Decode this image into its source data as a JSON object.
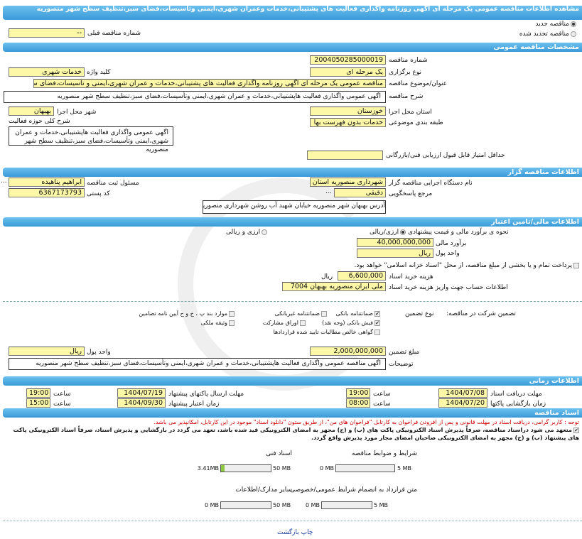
{
  "title": "مشاهده اطلاعات مناقصه عمومی یک مرحله ای اگهی روزنامه واگذاری فعالیت های پشتیبانی،خدمات وعمران شهری،ایمنی وتاسیسات،فضای سبز،تنظیف سطح شهر منصوریه",
  "tender_type": {
    "new": "مناقصه جدید",
    "renewed": "مناقصه تجدید شده",
    "prev_label": "شماره مناقصه قبلی",
    "prev_value": "--"
  },
  "general": {
    "header": "مشخصات مناقصه عمومی",
    "number_label": "شماره مناقصه",
    "number": "2004050285000019",
    "holding_label": "نوع برگزاری",
    "holding": "یک مرحله ای",
    "keyword_label": "کلید واژه",
    "keyword": "خدمات شهری",
    "subject_label": "عنوان/موضوع مناقصه",
    "subject": "مناقصه عمومی یک مرحله ای اگهی روزنامه واگذاری فعالیت های پشتیبانی،خدمات و عمران شهری،ایمنی و تأسیسات،فضای سبز",
    "desc_label": "شرح مناقصه",
    "desc": "اگهی عمومی  واگذاری فعالیت هاپشتیبانی،خدمات و عمران شهری،ایمنی وتأسیسات،فضای سبز،تنظیف  سطح شهر منصوریه",
    "province_label": "استان محل اجرا",
    "province": "خوزستان",
    "city_label": "شهر محل اجرا",
    "city": "بهبهان",
    "category_label": "طبقه بندی موضوعی",
    "category": "خدمات بدون فهرست بها",
    "activity_label": "شرح کلی حوزه فعالیت",
    "activity": "اگهی عمومی واگذاری فعالیت هاپشتیبانی،خدمات و عمران شهری،ایمنی وتأسیسات،فضای سبز،تنظیف  سطح شهر منصوریه",
    "min_score_label": "حداقل امتیاز قابل قبول ارزیابی فنی/بازرگانی",
    "min_score": ""
  },
  "organizer": {
    "header": "اطلاعات مناقصه گزار",
    "org_label": "نام دستگاه اجرایی مناقصه گزار",
    "org": "شهرداری منصوریه استان خ",
    "resp_label": "مسئول ثبت مناقصه",
    "resp": "ابراهیم پناهیده",
    "ref_label": "مرجع پاسخگویی",
    "ref": "دقیقی",
    "postal_label": "کد پستی",
    "postal": "6367173793",
    "address_label": "آدرس",
    "address": "بهبهان شهر منصوریه خیابان شهید آب روشن شهرداری منصوریه",
    "more": "..."
  },
  "finance": {
    "header": "اطلاعات مالی/تامین اعتبار",
    "method_label": "نحوه ی برآورد مالی و قیمت پیشنهادی",
    "opt_rial": "ارزی/ریالی",
    "opt_both": "ارزی و ریالی",
    "estimate_label": "برآورد مالی",
    "estimate": "40,000,000,000",
    "currency_label": "واحد پول",
    "currency": "ریال",
    "treasury": "پرداخت تمام و یا بخشی  از مبلغ مناقصه، از محل \"اسناد خزانه اسلامی\" خواهد بود.",
    "doc_fee_label": "هزینه خرید اسناد",
    "doc_fee": "6,600,000",
    "doc_fee_unit": "ریال",
    "account_label": "اطلاعات حساب جهت واریز هزینه خرید اسناد",
    "account": "ملی ایران منصوریه بهبهان 7004",
    "guarantee_label": "تضمین شرکت در مناقصه:",
    "guarantee_type_label": "نوع تضمین",
    "options": [
      {
        "label": "ضمانتنامه بانکی",
        "checked": true
      },
      {
        "label": "ضمانتنامه غیربانکی",
        "checked": false
      },
      {
        "label": "موارد بند پ ، خ و ح آیین نامه تضامین",
        "checked": false
      },
      {
        "label": "فیش بانکی (وجه نقد)",
        "checked": true
      },
      {
        "label": "اوراق مشارکت",
        "checked": false
      },
      {
        "label": "وثیقه ملکی",
        "checked": false
      },
      {
        "label": "گواهی خالص مطالبات تایید شده قراردادها",
        "checked": false
      }
    ],
    "g_amount_label": "مبلغ تضمین",
    "g_amount": "2,000,000,000",
    "g_currency_label": "واحد پول",
    "g_currency": "ریال",
    "notes_label": "توضیحات",
    "notes": "اگهی مناقصه عمومی واگذاری فعالیت هاپشتیبانی،خدمات و عمران شهری،ایمنی وتأسیسات،فضای سبز،تنظیف  سطح شهر منصوریه"
  },
  "timing": {
    "header": "اطلاعات زمانی",
    "doc_deadline_label": "مهلت دریافت اسناد",
    "doc_deadline": "1404/07/08",
    "t1_label": "ساعت",
    "t1": "19:00",
    "submit_label": "مهلت ارسال پاکتهای پیشنهاد",
    "submit": "1404/07/19",
    "t2_label": "ساعت",
    "t2": "19:00",
    "open_label": "زمان بازگشایی پاکتها",
    "open": "1404/07/20",
    "t3_label": "ساعت",
    "t3": "08:00",
    "valid_label": "زمان اعتبار پیشنهاد",
    "valid": "1404/09/30",
    "t4_label": "ساعت",
    "t4": "15:00"
  },
  "docs": {
    "header": "اسناد مناقصه",
    "note": "توجه : کاربر گرامی، دریافت اسناد در مهلت قانونی و پس از افزودن فراخوان به کارتابل \"فراخوان های من\"، از طریق ستون \"دانلود اسناد\" موجود در این کارتابل، امکانپذیر می باشد.",
    "commit": "متعهد می شود دراسناد مناقصه، صرفاً پذیرش اسناد الکترونیکی پاکت های (ب) و (ج) مجهز به امضای الکترونیکی قید شده باشد، تعهد می گردد در بازگشایی و پذیرش اسناد، صرفاً اسناد الکترونیکی پاکت های پیشنهاد (ب) و (ج) مجهز به امضای الکترونیکی صاحبان امضای مجاز مورد پذیرش واقع گردد.",
    "files": [
      {
        "label": "شرایط و ضوابط مناقصه",
        "used": "0 MB",
        "max": "5 MB",
        "fill": 0
      },
      {
        "label": "اسناد فنی",
        "used": "3.41MB",
        "max": "50 MB",
        "fill": 6.8
      },
      {
        "label": "متن قرارداد به انضمام شرایط عمومی/خصوصی",
        "used": "0 MB",
        "max": "5 MB",
        "fill": 0
      },
      {
        "label": "سایر مدارک/اطلاعات",
        "used": "0 MB",
        "max": "50 MB",
        "fill": 0
      }
    ]
  },
  "footer": {
    "print": "چاپ",
    "back": "بازگشت"
  },
  "colors": {
    "header": "#3a9ad8",
    "field": "#fcf8a8",
    "note": "#cc0000",
    "link": "#1a3fa0"
  }
}
